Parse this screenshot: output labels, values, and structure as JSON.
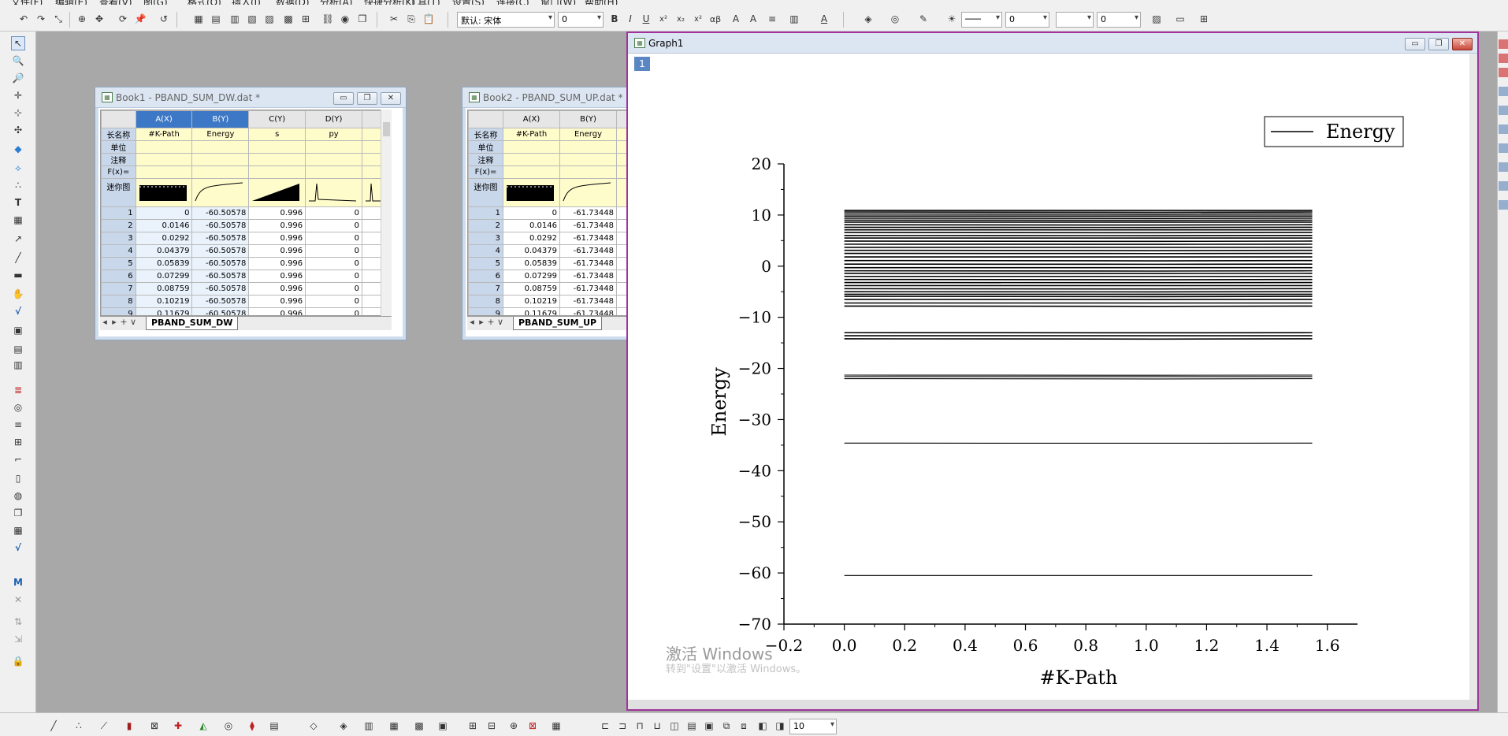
{
  "menu": {
    "items": [
      "文件(F)",
      "编辑(E)",
      "查看(V)",
      "图(G)",
      "格式(O)",
      "插入(I)",
      "数据(D)",
      "分析(A)",
      "快捷分析(K)",
      "工具(T)",
      "设置(S)",
      "连接(C)",
      "窗口(W)",
      "帮助(H)"
    ]
  },
  "format_toolbar": {
    "font_name": "默认: 宋体",
    "font_size": "0",
    "bold": "B",
    "italic": "I",
    "underline": "U",
    "superscript": "x²",
    "subscript": "x₂",
    "superscript2": "x²",
    "greek": "αβ",
    "line_width": "0",
    "pattern_size": "0"
  },
  "book1": {
    "title": "Book1 - PBAND_SUM_DW.dat *",
    "columns": [
      "A(X)",
      "B(Y)",
      "C(Y)",
      "D(Y)"
    ],
    "long_names": [
      "#K-Path",
      "Energy",
      "s",
      "py"
    ],
    "row_labels": {
      "long_name": "长名称",
      "units": "单位",
      "comments": "注释",
      "formula": "F(x)=",
      "sparklines": "迷你图"
    },
    "rows": [
      [
        "1",
        "0",
        "-60.50578",
        "0.996",
        "0"
      ],
      [
        "2",
        "0.0146",
        "-60.50578",
        "0.996",
        "0"
      ],
      [
        "3",
        "0.0292",
        "-60.50578",
        "0.996",
        "0"
      ],
      [
        "4",
        "0.04379",
        "-60.50578",
        "0.996",
        "0"
      ],
      [
        "5",
        "0.05839",
        "-60.50578",
        "0.996",
        "0"
      ],
      [
        "6",
        "0.07299",
        "-60.50578",
        "0.996",
        "0"
      ],
      [
        "7",
        "0.08759",
        "-60.50578",
        "0.996",
        "0"
      ],
      [
        "8",
        "0.10219",
        "-60.50578",
        "0.996",
        "0"
      ],
      [
        "9",
        "0.11679",
        "-60.50578",
        "0.996",
        "0"
      ]
    ],
    "sheet_tab": "PBAND_SUM_DW"
  },
  "book2": {
    "title": "Book2 - PBAND_SUM_UP.dat *",
    "columns": [
      "A(X)",
      "B(Y)"
    ],
    "long_names": [
      "#K-Path",
      "Energy"
    ],
    "row_labels": {
      "long_name": "长名称",
      "units": "单位",
      "comments": "注释",
      "formula": "F(x)=",
      "sparklines": "迷你图"
    },
    "rows": [
      [
        "1",
        "0",
        "-61.73448"
      ],
      [
        "2",
        "0.0146",
        "-61.73448"
      ],
      [
        "3",
        "0.0292",
        "-61.73448"
      ],
      [
        "4",
        "0.04379",
        "-61.73448"
      ],
      [
        "5",
        "0.05839",
        "-61.73448"
      ],
      [
        "6",
        "0.07299",
        "-61.73448"
      ],
      [
        "7",
        "0.08759",
        "-61.73448"
      ],
      [
        "8",
        "0.10219",
        "-61.73448"
      ],
      [
        "9",
        "0.11679",
        "-61.73448"
      ]
    ],
    "sheet_tab": "PBAND_SUM_UP"
  },
  "graph": {
    "title": "Graph1",
    "layer": "1"
  },
  "chart_data": {
    "type": "line",
    "title": "",
    "xlabel": "#K-Path",
    "ylabel": "Energy",
    "legend": [
      "Energy"
    ],
    "legend_position": "top-right",
    "xlim": [
      -0.2,
      1.7
    ],
    "ylim": [
      -70,
      20
    ],
    "xticks": [
      "-0.2",
      "0.0",
      "0.2",
      "0.4",
      "0.6",
      "0.8",
      "1.0",
      "1.2",
      "1.4",
      "1.6"
    ],
    "yticks": [
      "20",
      "10",
      "0",
      "-10",
      "-20",
      "-30",
      "-40",
      "-50",
      "-60",
      "-70"
    ],
    "x_range": [
      0,
      1.55
    ],
    "series_color": "#000000",
    "bands": [
      -60.5,
      -34.6,
      -22.0,
      -21.6,
      -21.3,
      -14.2,
      -13.6,
      -13.0,
      -7.8,
      -7.2,
      -6.5,
      -5.9,
      -5.5,
      -5.0,
      -4.4,
      -3.8,
      -3.2,
      -2.6,
      -2.0,
      -1.4,
      -0.9,
      -0.3,
      0.4,
      1.1,
      1.8,
      2.5,
      3.1,
      3.7,
      4.3,
      4.9,
      5.5,
      6.0,
      6.6,
      7.1,
      7.6,
      8.1,
      8.6,
      9.0,
      9.4,
      9.8,
      10.2,
      10.6,
      10.9
    ]
  },
  "zoom": {
    "value": "10"
  },
  "watermark": {
    "title": "激活 Windows",
    "subtitle": "转到\"设置\"以激活 Windows。"
  }
}
